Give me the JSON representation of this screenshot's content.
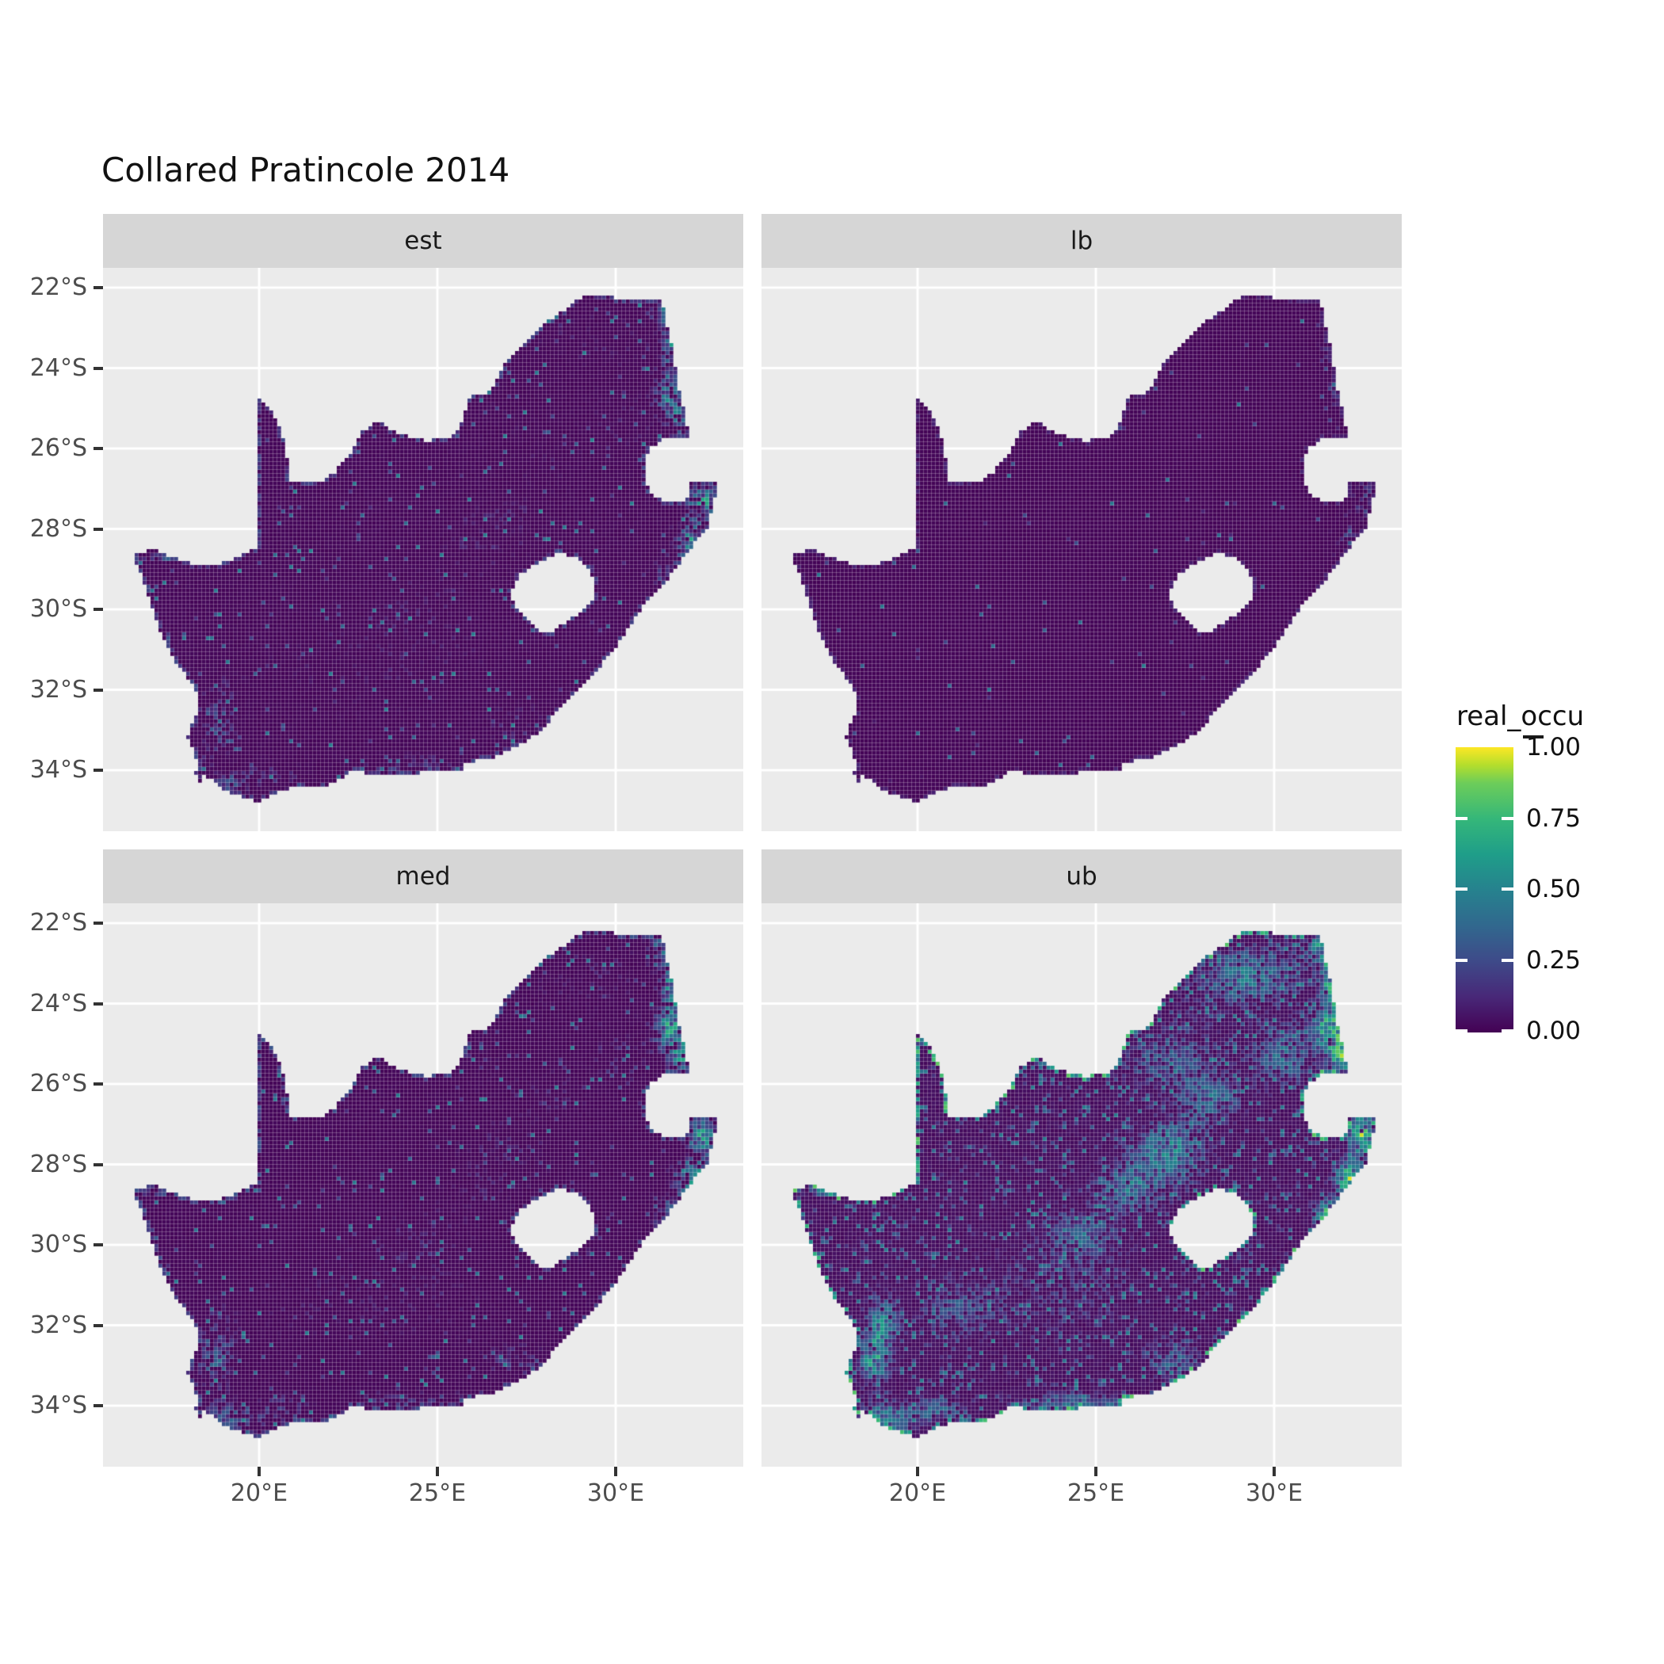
{
  "title": "Collared Pratincole 2014",
  "facets": [
    {
      "label": "est"
    },
    {
      "label": "lb"
    },
    {
      "label": "med"
    },
    {
      "label": "ub"
    }
  ],
  "axes": {
    "y_tick_labels": [
      "22°S",
      "24°S",
      "26°S",
      "28°S",
      "30°S",
      "32°S",
      "34°S"
    ],
    "x_tick_labels": [
      "20°E",
      "25°E",
      "30°E"
    ]
  },
  "legend": {
    "title": "real_occu",
    "tick_labels": [
      "1.00",
      "0.75",
      "0.50",
      "0.25",
      "0.00"
    ]
  },
  "colors": {
    "panel_bg": "#EBEBEB",
    "strip_bg": "#D6D6D6",
    "grid_line": "#FFFFFF",
    "axis_text": "#4D4D4D",
    "tick_mark": "#333333",
    "title_text": "#111111",
    "raster_seam": "rgba(255,255,255,0.28)",
    "viridis_low": "#440154",
    "viridis_high": "#FDE725"
  },
  "chart_data": {
    "type": "heatmap",
    "subtype": "faceted_raster_distribution_map",
    "region": "South Africa",
    "title": "Collared Pratincole 2014",
    "facets": [
      "est",
      "lb",
      "med",
      "ub"
    ],
    "fill_variable": "real_occu",
    "fill_scale": {
      "palette": "viridis",
      "limits": [
        0,
        1
      ],
      "breaks": [
        1.0,
        0.75,
        0.5,
        0.25,
        0.0
      ],
      "break_labels": [
        "1.00",
        "0.75",
        "0.50",
        "0.25",
        "0.00"
      ]
    },
    "x": {
      "unit": "degrees east",
      "breaks": [
        20,
        25,
        30
      ],
      "range": [
        15.6,
        33.6
      ]
    },
    "y": {
      "unit": "degrees south",
      "breaks": [
        -22,
        -24,
        -26,
        -28,
        -30,
        -32,
        -34
      ],
      "range": [
        -35.5,
        -21.5
      ]
    },
    "legend_position": "right",
    "grid": true,
    "facet_summaries": {
      "est": "mostly ~0 (dark purple); hotspots 0.3-1.0 along NE Limpopo border and NE KwaZulu-Natal coast; sparse 0.2-0.5 speckles in SW Cape, along south coast and Orange River mouth",
      "lb": "almost uniformly 0; only isolated 0.5-1.0 cells on the NE border strip and NE coast",
      "med": "like est but denser/brighter NE border and NE coastal hotspots reaching 1.0",
      "ub": "widespread 0.2-0.6 speckling across the interior, strong 0.6-1.0 patches in Limpopo lowveld, NE coast, SW Cape, plus yellow fringing along west and south coastlines"
    },
    "viridis_stops": [
      [
        0.0,
        "#440154"
      ],
      [
        0.125,
        "#482878"
      ],
      [
        0.25,
        "#3E4A89"
      ],
      [
        0.375,
        "#31688E"
      ],
      [
        0.5,
        "#26828E"
      ],
      [
        0.625,
        "#1F9E89"
      ],
      [
        0.75,
        "#35B779"
      ],
      [
        0.875,
        "#6DCD59"
      ],
      [
        0.9375,
        "#B4DE2C"
      ],
      [
        1.0,
        "#FDE725"
      ]
    ],
    "map_outline_lonlat": [
      [
        16.45,
        -28.6
      ],
      [
        17.1,
        -28.53
      ],
      [
        17.65,
        -28.73
      ],
      [
        18.25,
        -28.88
      ],
      [
        18.95,
        -28.85
      ],
      [
        19.45,
        -28.68
      ],
      [
        19.99,
        -28.43
      ],
      [
        19.99,
        -24.77
      ],
      [
        20.35,
        -25.1
      ],
      [
        20.68,
        -25.7
      ],
      [
        20.8,
        -26.3
      ],
      [
        20.87,
        -26.82
      ],
      [
        21.65,
        -26.86
      ],
      [
        22.1,
        -26.62
      ],
      [
        22.58,
        -26.12
      ],
      [
        22.88,
        -25.6
      ],
      [
        23.3,
        -25.32
      ],
      [
        24.0,
        -25.65
      ],
      [
        24.75,
        -25.82
      ],
      [
        25.38,
        -25.7
      ],
      [
        25.65,
        -25.45
      ],
      [
        25.92,
        -24.72
      ],
      [
        26.48,
        -24.6
      ],
      [
        26.9,
        -23.85
      ],
      [
        27.25,
        -23.52
      ],
      [
        28.05,
        -22.88
      ],
      [
        28.98,
        -22.28
      ],
      [
        29.48,
        -22.15
      ],
      [
        30.3,
        -22.3
      ],
      [
        31.3,
        -22.33
      ],
      [
        31.6,
        -23.5
      ],
      [
        31.72,
        -24.3
      ],
      [
        31.98,
        -25.25
      ],
      [
        32.05,
        -25.7
      ],
      [
        31.4,
        -25.73
      ],
      [
        30.98,
        -25.98
      ],
      [
        30.8,
        -26.35
      ],
      [
        30.8,
        -26.82
      ],
      [
        31.08,
        -27.2
      ],
      [
        31.5,
        -27.32
      ],
      [
        31.97,
        -27.3
      ],
      [
        32.13,
        -26.85
      ],
      [
        32.89,
        -26.86
      ],
      [
        32.58,
        -27.95
      ],
      [
        32.05,
        -28.55
      ],
      [
        31.35,
        -29.38
      ],
      [
        30.7,
        -30.0
      ],
      [
        30.05,
        -30.9
      ],
      [
        29.4,
        -31.6
      ],
      [
        28.6,
        -32.3
      ],
      [
        27.9,
        -33.02
      ],
      [
        27.05,
        -33.52
      ],
      [
        26.4,
        -33.75
      ],
      [
        25.7,
        -33.8
      ],
      [
        25.75,
        -34.05
      ],
      [
        25.0,
        -34.02
      ],
      [
        24.2,
        -34.1
      ],
      [
        23.4,
        -34.1
      ],
      [
        22.6,
        -34.05
      ],
      [
        21.9,
        -34.4
      ],
      [
        20.6,
        -34.48
      ],
      [
        20.0,
        -34.82
      ],
      [
        19.35,
        -34.62
      ],
      [
        18.85,
        -34.4
      ],
      [
        18.45,
        -34.08
      ],
      [
        18.4,
        -34.35
      ],
      [
        18.2,
        -34.1
      ],
      [
        18.3,
        -33.88
      ],
      [
        17.98,
        -33.15
      ],
      [
        18.28,
        -32.58
      ],
      [
        18.22,
        -31.95
      ],
      [
        17.6,
        -31.25
      ],
      [
        17.22,
        -30.55
      ],
      [
        16.98,
        -29.85
      ],
      [
        16.72,
        -29.2
      ]
    ],
    "lesotho_hole_lonlat": [
      [
        27.02,
        -29.63
      ],
      [
        27.38,
        -29.08
      ],
      [
        27.82,
        -28.88
      ],
      [
        28.4,
        -28.6
      ],
      [
        28.88,
        -28.72
      ],
      [
        29.18,
        -28.92
      ],
      [
        29.45,
        -29.3
      ],
      [
        29.38,
        -29.72
      ],
      [
        28.98,
        -30.08
      ],
      [
        28.48,
        -30.4
      ],
      [
        28.1,
        -30.62
      ],
      [
        27.73,
        -30.45
      ],
      [
        27.33,
        -30.1
      ]
    ],
    "hotspots": [
      {
        "c": [
          31.5,
          -22.55
        ],
        "s": [
          0.55,
          0.4
        ],
        "a": [
          0.55,
          0.3,
          0.65,
          0.8
        ]
      },
      {
        "c": [
          31.75,
          -23.55
        ],
        "s": [
          0.42,
          0.55
        ],
        "a": [
          0.8,
          0.55,
          0.95,
          1.0
        ]
      },
      {
        "c": [
          31.6,
          -24.65
        ],
        "s": [
          0.45,
          0.5
        ],
        "a": [
          0.7,
          0.45,
          0.9,
          0.95
        ]
      },
      {
        "c": [
          31.9,
          -25.35
        ],
        "s": [
          0.35,
          0.4
        ],
        "a": [
          0.55,
          0.35,
          0.7,
          0.85
        ]
      },
      {
        "c": [
          29.3,
          -23.3
        ],
        "s": [
          1.7,
          0.85
        ],
        "a": [
          0.1,
          0.0,
          0.12,
          0.55
        ]
      },
      {
        "c": [
          27.0,
          -25.3
        ],
        "s": [
          1.6,
          1.0
        ],
        "a": [
          0.05,
          0.0,
          0.06,
          0.38
        ]
      },
      {
        "c": [
          30.3,
          -25.3
        ],
        "s": [
          0.9,
          0.8
        ],
        "a": [
          0.1,
          0.02,
          0.15,
          0.5
        ]
      },
      {
        "c": [
          32.45,
          -27.3
        ],
        "s": [
          0.4,
          0.42
        ],
        "a": [
          0.75,
          0.55,
          0.9,
          1.0
        ]
      },
      {
        "c": [
          32.15,
          -28.35
        ],
        "s": [
          0.45,
          0.5
        ],
        "a": [
          0.7,
          0.5,
          0.85,
          1.0
        ]
      },
      {
        "c": [
          31.5,
          -29.3
        ],
        "s": [
          0.45,
          0.5
        ],
        "a": [
          0.35,
          0.15,
          0.45,
          0.75
        ]
      },
      {
        "c": [
          18.8,
          -32.9
        ],
        "s": [
          0.45,
          0.65
        ],
        "a": [
          0.4,
          0.1,
          0.45,
          0.75
        ]
      },
      {
        "c": [
          19.15,
          -34.3
        ],
        "s": [
          0.8,
          0.4
        ],
        "a": [
          0.35,
          0.1,
          0.4,
          0.65
        ]
      },
      {
        "c": [
          20.6,
          -34.1
        ],
        "s": [
          0.7,
          0.35
        ],
        "a": [
          0.2,
          0.05,
          0.25,
          0.45
        ]
      },
      {
        "c": [
          19.0,
          -31.9
        ],
        "s": [
          0.5,
          0.7
        ],
        "a": [
          0.12,
          0.02,
          0.15,
          0.55
        ]
      },
      {
        "c": [
          17.5,
          -28.68
        ],
        "s": [
          0.75,
          0.1
        ],
        "a": [
          0.5,
          0.08,
          0.55,
          0.7
        ]
      },
      {
        "c": [
          24.6,
          -29.7
        ],
        "s": [
          0.9,
          0.6
        ],
        "a": [
          0.06,
          0.0,
          0.08,
          0.4
        ]
      },
      {
        "c": [
          25.9,
          -28.6
        ],
        "s": [
          0.9,
          0.6
        ],
        "a": [
          0.06,
          0.0,
          0.08,
          0.42
        ]
      },
      {
        "c": [
          27.1,
          -27.5
        ],
        "s": [
          0.9,
          0.6
        ],
        "a": [
          0.06,
          0.0,
          0.08,
          0.42
        ]
      },
      {
        "c": [
          28.3,
          -26.4
        ],
        "s": [
          0.9,
          0.6
        ],
        "a": [
          0.06,
          0.0,
          0.1,
          0.45
        ]
      },
      {
        "c": [
          24.3,
          -33.95
        ],
        "s": [
          1.8,
          0.3
        ],
        "a": [
          0.25,
          0.06,
          0.25,
          0.5
        ]
      },
      {
        "c": [
          27.2,
          -32.9
        ],
        "s": [
          0.8,
          0.5
        ],
        "a": [
          0.18,
          0.04,
          0.2,
          0.45
        ]
      },
      {
        "c": [
          21.0,
          -31.6
        ],
        "s": [
          1.1,
          0.7
        ],
        "a": [
          0.05,
          0.0,
          0.06,
          0.35
        ]
      },
      {
        "c": [
          24.0,
          -31.0
        ],
        "s": [
          2.6,
          1.6
        ],
        "a": [
          0.1,
          0.02,
          0.1,
          0.22
        ]
      },
      {
        "c": [
          26.8,
          -28.0
        ],
        "s": [
          1.5,
          1.0
        ],
        "a": [
          0.08,
          0.01,
          0.08,
          0.3
        ]
      },
      {
        "c": [
          29.0,
          -29.8
        ],
        "s": [
          0.5,
          0.6
        ],
        "a": [
          0.15,
          0.03,
          0.18,
          0.4
        ]
      }
    ],
    "facet_render": [
      {
        "label": "est",
        "seed": 101,
        "scatter": 0.035,
        "sparsity": 1.2,
        "density": 0.8,
        "edge_amp": 0.25,
        "wash": 0.02
      },
      {
        "label": "lb",
        "seed": 202,
        "scatter": 0.01,
        "sparsity": 3.0,
        "density": 0.3,
        "edge_amp": 0.12,
        "wash": 0.015
      },
      {
        "label": "med",
        "seed": 303,
        "scatter": 0.04,
        "sparsity": 1.0,
        "density": 0.85,
        "edge_amp": 0.3,
        "wash": 0.02
      },
      {
        "label": "ub",
        "seed": 404,
        "scatter": 0.14,
        "sparsity": 0.8,
        "density": 0.95,
        "edge_amp": 0.85,
        "wash": 0.05
      }
    ]
  }
}
